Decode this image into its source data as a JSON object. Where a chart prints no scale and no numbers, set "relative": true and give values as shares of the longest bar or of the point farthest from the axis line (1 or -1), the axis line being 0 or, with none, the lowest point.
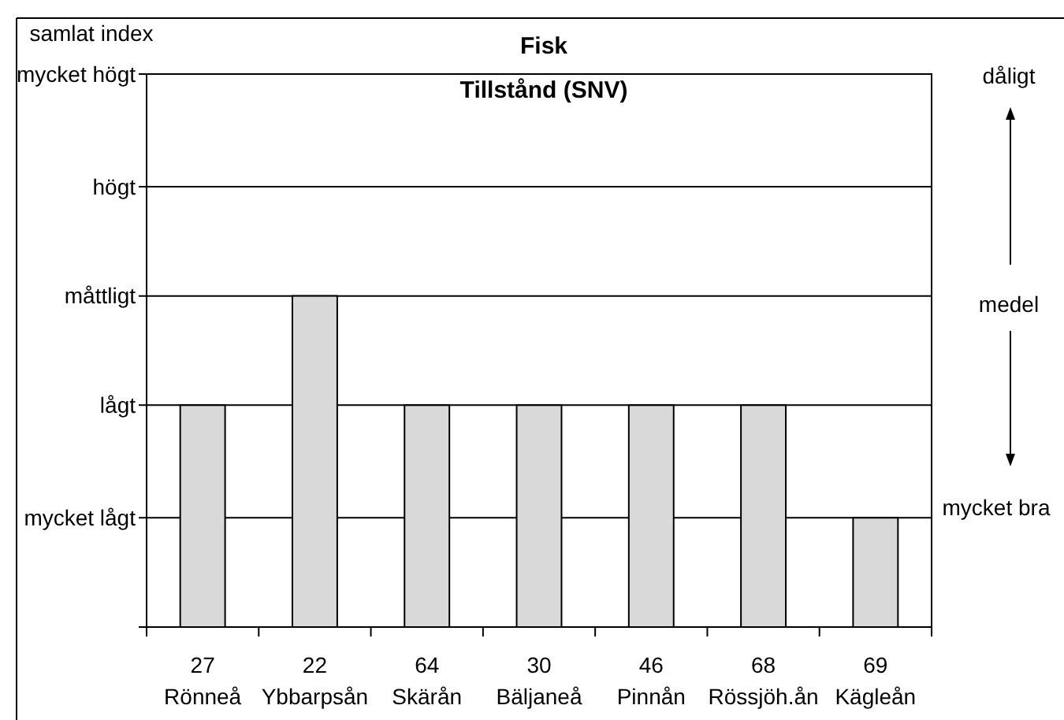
{
  "chart_data": {
    "type": "bar",
    "title": "Fisk",
    "subtitle": "Tillstånd (SNV)",
    "categories": [
      "27\nRönneå",
      "22\nYbbarpsån",
      "64\nSkärån",
      "30\nBäljaneå",
      "46\nPinnån",
      "68\nRössjöh.ån",
      "69\nKägleån"
    ],
    "values": [
      0.67,
      1,
      0.67,
      0.67,
      0.67,
      0.67,
      0.33
    ],
    "color": "#d9d9d9",
    "relative": true,
    "ref_lines": [
      {
        "axis": "y",
        "value": 0.33,
        "label": "mycket lågt"
      },
      {
        "axis": "y",
        "value": 0.67,
        "label": "lågt"
      },
      {
        "axis": "y",
        "value": 1,
        "label": "måttligt"
      },
      {
        "axis": "y",
        "value": 1.33,
        "label": "högt"
      },
      {
        "axis": "y",
        "value": 1.67,
        "label": "mycket högt"
      }
    ],
    "annotations": [
      "samlat index",
      "dåligt",
      "medel",
      "mycket bra"
    ]
  }
}
